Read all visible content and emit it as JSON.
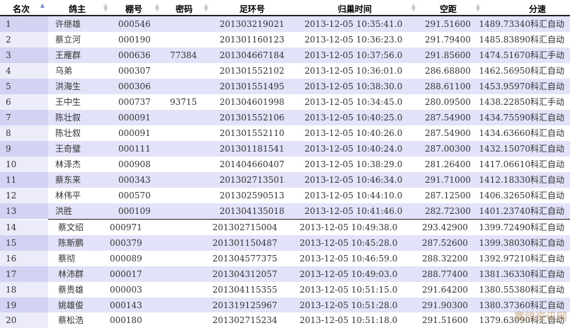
{
  "header": {
    "rank": "名次",
    "owner": "鸽主",
    "loft_no": "棚号",
    "password": "密码",
    "ring_no": "足环号",
    "arrival_time": "归巢时间",
    "distance": "空距",
    "speed": "分速",
    "sort_column": "rank",
    "sort_direction": "ascending"
  },
  "rows": [
    {
      "rank": "1",
      "owner": "许继雄",
      "loft": "000546",
      "password": "",
      "ring": "201303219021",
      "time": "2013-12-05 10:35:41.0",
      "distance": "291.51600",
      "speed": "1489.73340",
      "source": "科汇自动"
    },
    {
      "rank": "2",
      "owner": "蔡立河",
      "loft": "000190",
      "password": "",
      "ring": "201301160123",
      "time": "2013-12-05 10:36:23.0",
      "distance": "291.79400",
      "speed": "1485.83890",
      "source": "科汇自动"
    },
    {
      "rank": "3",
      "owner": "王雁群",
      "loft": "000636",
      "password": "77384",
      "ring": "201304667184",
      "time": "2013-12-05 10:37:56.0",
      "distance": "291.85600",
      "speed": "1474.51670",
      "source": "科汇手动"
    },
    {
      "rank": "4",
      "owner": "乌弟",
      "loft": "000307",
      "password": "",
      "ring": "201301552102",
      "time": "2013-12-05 10:36:01.0",
      "distance": "286.68800",
      "speed": "1462.56950",
      "source": "科汇自动"
    },
    {
      "rank": "5",
      "owner": "洪海生",
      "loft": "000306",
      "password": "",
      "ring": "201301551495",
      "time": "2013-12-05 10:38:30.0",
      "distance": "288.61100",
      "speed": "1453.95970",
      "source": "科汇自动"
    },
    {
      "rank": "6",
      "owner": "王中生",
      "loft": "000737",
      "password": "93715",
      "ring": "201304601998",
      "time": "2013-12-05 10:34:45.0",
      "distance": "280.09500",
      "speed": "1438.22850",
      "source": "科汇手动"
    },
    {
      "rank": "7",
      "owner": "陈壮叙",
      "loft": "000091",
      "password": "",
      "ring": "201301552106",
      "time": "2013-12-05 10:40:25.0",
      "distance": "287.54900",
      "speed": "1434.75590",
      "source": "科汇自动"
    },
    {
      "rank": "8",
      "owner": "陈壮叙",
      "loft": "000091",
      "password": "",
      "ring": "201301552110",
      "time": "2013-12-05 10:40:26.0",
      "distance": "287.54900",
      "speed": "1434.63660",
      "source": "科汇自动"
    },
    {
      "rank": "9",
      "owner": "王奇璧",
      "loft": "000111",
      "password": "",
      "ring": "201301181541",
      "time": "2013-12-05 10:40:24.0",
      "distance": "287.00300",
      "speed": "1432.15070",
      "source": "科汇自动"
    },
    {
      "rank": "10",
      "owner": "林泽杰",
      "loft": "000908",
      "password": "",
      "ring": "201404660407",
      "time": "2013-12-05 10:38:29.0",
      "distance": "281.26400",
      "speed": "1417.06610",
      "source": "科汇自动"
    },
    {
      "rank": "11",
      "owner": "蔡东来",
      "loft": "000343",
      "password": "",
      "ring": "201302713501",
      "time": "2013-12-05 10:46:34.0",
      "distance": "291.71000",
      "speed": "1412.18330",
      "source": "科汇自动"
    },
    {
      "rank": "12",
      "owner": "林伟平",
      "loft": "000570",
      "password": "",
      "ring": "201302590513",
      "time": "2013-12-05 10:44:10.0",
      "distance": "287.12500",
      "speed": "1406.32650",
      "source": "科汇自动"
    },
    {
      "rank": "13",
      "owner": "洪胜",
      "loft": "000109",
      "password": "",
      "ring": "201304135018",
      "time": "2013-12-05 10:41:46.0",
      "distance": "282.72300",
      "speed": "1401.23740",
      "source": "科汇自动"
    },
    {
      "rank": "14",
      "owner": "蔡文绍",
      "loft": "000971",
      "password": "",
      "ring": "201302715004",
      "time": "2013-12-05 10:49:38.0",
      "distance": "293.42900",
      "speed": "1399.72490",
      "source": "科汇自动"
    },
    {
      "rank": "15",
      "owner": "陈斯鹏",
      "loft": "000379",
      "password": "",
      "ring": "201301150487",
      "time": "2013-12-05 10:45:28.0",
      "distance": "287.52600",
      "speed": "1399.38030",
      "source": "科汇自动"
    },
    {
      "rank": "16",
      "owner": "蔡彻",
      "loft": "000089",
      "password": "",
      "ring": "201304577375",
      "time": "2013-12-05 10:46:59.0",
      "distance": "288.32200",
      "speed": "1392.97210",
      "source": "科汇自动"
    },
    {
      "rank": "17",
      "owner": "林沛群",
      "loft": "000017",
      "password": "",
      "ring": "201304312057",
      "time": "2013-12-05 10:49:03.0",
      "distance": "288.77400",
      "speed": "1381.36330",
      "source": "科汇自动"
    },
    {
      "rank": "18",
      "owner": "蔡贵雄",
      "loft": "000003",
      "password": "",
      "ring": "201304115355",
      "time": "2013-12-05 10:51:15.0",
      "distance": "291.64200",
      "speed": "1380.55380",
      "source": "科汇自动"
    },
    {
      "rank": "19",
      "owner": "姚雄俊",
      "loft": "000143",
      "password": "",
      "ring": "201319125967",
      "time": "2013-12-05 10:51:28.0",
      "distance": "291.90300",
      "speed": "1380.37360",
      "source": "科汇自动"
    },
    {
      "rank": "20",
      "owner": "蔡松浩",
      "loft": "000180",
      "password": "",
      "ring": "201302715234",
      "time": "2013-12-05 10:51:18.0",
      "distance": "291.51600",
      "speed": "1379.63090",
      "source": "科汇自动"
    }
  ],
  "watermark": "赛鸽资讯网",
  "colors": {
    "row_alt": "#e2e2f8",
    "rank_col": "#d2d2f2",
    "sort_active": "#7a8ad0"
  }
}
